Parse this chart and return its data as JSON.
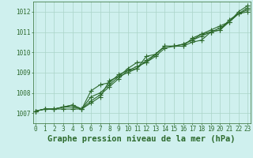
{
  "title": "Graphe pression niveau de la mer (hPa)",
  "xlabel_ticks": [
    0,
    1,
    2,
    3,
    4,
    5,
    6,
    7,
    8,
    9,
    10,
    11,
    12,
    13,
    14,
    15,
    16,
    17,
    18,
    19,
    20,
    21,
    22,
    23
  ],
  "ylim": [
    1006.5,
    1012.5
  ],
  "yticks": [
    1007,
    1008,
    1009,
    1010,
    1011,
    1012
  ],
  "xlim": [
    -0.3,
    23.3
  ],
  "bg_color": "#cff0ee",
  "grid_color": "#aad4c8",
  "line_color": "#2d6a2d",
  "series": [
    [
      1007.1,
      1007.2,
      1007.2,
      1007.2,
      1007.2,
      1007.2,
      1007.6,
      1007.9,
      1008.3,
      1008.7,
      1009.1,
      1009.3,
      1009.5,
      1009.8,
      1010.2,
      1010.3,
      1010.3,
      1010.5,
      1010.6,
      1011.0,
      1011.1,
      1011.5,
      1011.9,
      1012.0
    ],
    [
      1007.1,
      1007.2,
      1007.2,
      1007.3,
      1007.3,
      1007.2,
      1007.8,
      1008.0,
      1008.4,
      1008.8,
      1009.0,
      1009.2,
      1009.6,
      1009.9,
      1010.3,
      1010.3,
      1010.4,
      1010.6,
      1010.8,
      1011.0,
      1011.2,
      1011.5,
      1011.9,
      1012.1
    ],
    [
      1007.1,
      1007.2,
      1007.2,
      1007.3,
      1007.4,
      1007.2,
      1008.1,
      1008.4,
      1008.5,
      1008.9,
      1009.1,
      1009.2,
      1009.8,
      1009.9,
      1010.3,
      1010.3,
      1010.4,
      1010.6,
      1010.9,
      1011.0,
      1011.1,
      1011.6,
      1011.9,
      1012.2
    ],
    [
      1007.1,
      1007.2,
      1007.2,
      1007.3,
      1007.4,
      1007.2,
      1007.5,
      1007.8,
      1008.6,
      1008.8,
      1009.2,
      1009.5,
      1009.5,
      1009.9,
      1010.3,
      1010.3,
      1010.3,
      1010.7,
      1010.9,
      1011.1,
      1011.3,
      1011.5,
      1012.0,
      1012.3
    ]
  ],
  "marker": "+",
  "marker_size": 4,
  "linewidth": 0.8,
  "title_fontsize": 7.5,
  "tick_fontsize": 5.5
}
